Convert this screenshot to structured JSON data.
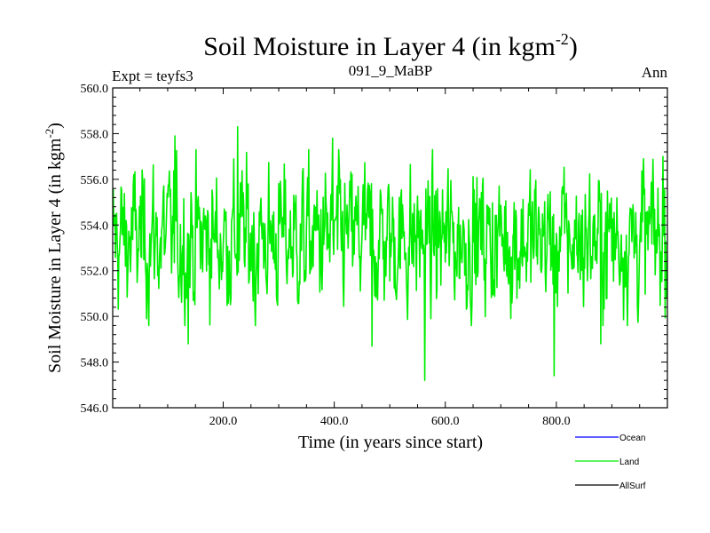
{
  "chart_data": {
    "type": "line",
    "title": "Soil Moisture in Layer 4 (in kgm",
    "title_superscript": "-2",
    "title_close": ")",
    "subtitle_left": "Expt = teyfs3",
    "subtitle_center": "091_9_MaBP",
    "subtitle_right": "Ann",
    "xlabel": "Time (in years since start)",
    "ylabel": "Soil Moisture in Layer 4 (in kgm",
    "ylabel_superscript": "-2",
    "ylabel_close": ")",
    "xlim": [
      1,
      1000
    ],
    "ylim": [
      546.0,
      560.0
    ],
    "x_ticks": [
      {
        "value": 200,
        "label": "200.0"
      },
      {
        "value": 400,
        "label": "400.0"
      },
      {
        "value": 600,
        "label": "600.0"
      },
      {
        "value": 800,
        "label": "800.0"
      }
    ],
    "y_ticks": [
      {
        "value": 546,
        "label": "546.0"
      },
      {
        "value": 548,
        "label": "548.0"
      },
      {
        "value": 550,
        "label": "550.0"
      },
      {
        "value": 552,
        "label": "552.0"
      },
      {
        "value": 554,
        "label": "554.0"
      },
      {
        "value": 556,
        "label": "556.0"
      },
      {
        "value": 558,
        "label": "558.0"
      },
      {
        "value": 560,
        "label": "560.0"
      }
    ],
    "series": [
      {
        "name": "Ocean",
        "color": "#0000ff",
        "values": []
      },
      {
        "name": "Land",
        "color": "#00ee00",
        "generated": true,
        "n_points": 1000,
        "mean": 553.4,
        "std": 1.55,
        "anchors": [
          {
            "x": 113,
            "y": 557.9
          },
          {
            "x": 137,
            "y": 548.8
          },
          {
            "x": 226,
            "y": 558.3
          },
          {
            "x": 258,
            "y": 549.6
          },
          {
            "x": 397,
            "y": 557.8
          },
          {
            "x": 468,
            "y": 548.7
          },
          {
            "x": 563,
            "y": 547.2
          },
          {
            "x": 796,
            "y": 547.4
          },
          {
            "x": 880,
            "y": 548.8
          },
          {
            "x": 992,
            "y": 557.0
          }
        ]
      },
      {
        "name": "AllSurf",
        "color": "#000000",
        "values": []
      }
    ],
    "legend": {
      "position": "bottom-right",
      "entries": [
        {
          "name": "Ocean",
          "color": "#0000ff"
        },
        {
          "name": "Land",
          "color": "#00ee00"
        },
        {
          "name": "AllSurf",
          "color": "#000000"
        }
      ]
    }
  }
}
